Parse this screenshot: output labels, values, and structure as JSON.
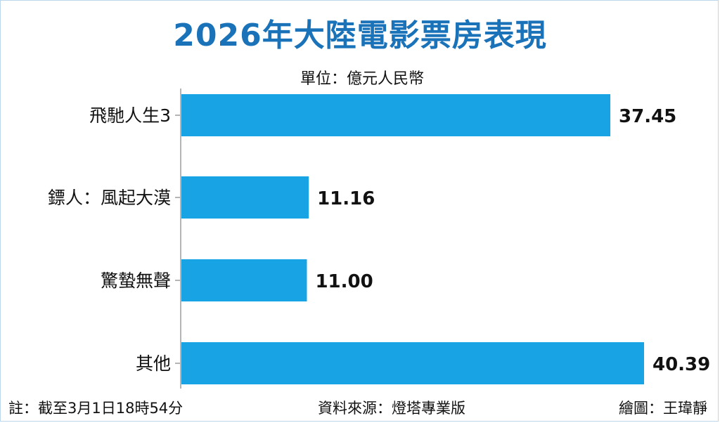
{
  "title": "2026年大陸電影票房表現",
  "unit_label": "單位：億元人民幣",
  "footer": {
    "note": "註：截至3月1日18時54分",
    "source": "資料來源：燈塔專業版",
    "credit": "繪圖：王瑋靜"
  },
  "colors": {
    "bar": "#17a3e4",
    "title": "#1a72b8",
    "axis": "#b5b5b5"
  },
  "chart_data": {
    "type": "bar",
    "orientation": "horizontal",
    "categories": [
      "飛馳人生3",
      "鏢人：風起大漠",
      "驚蟄無聲",
      "其他"
    ],
    "values": [
      37.45,
      11.16,
      11.0,
      40.39
    ],
    "value_labels": [
      "37.45",
      "11.16",
      "11.00",
      "40.39"
    ],
    "title": "2026年大陸電影票房表現",
    "xlabel": "",
    "ylabel": "",
    "unit": "億元人民幣",
    "xlim": [
      0,
      40.39
    ],
    "grid": false,
    "legend": "none"
  }
}
